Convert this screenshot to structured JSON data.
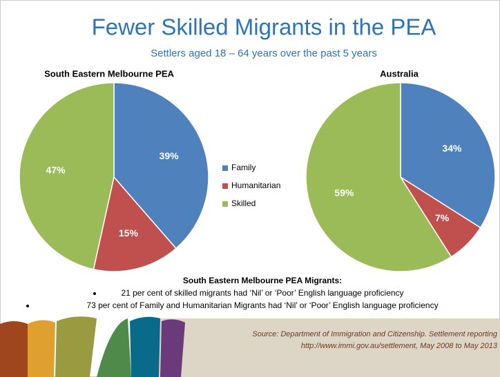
{
  "chart_data": {
    "type": "pie",
    "title": "Fewer Skilled Migrants in the PEA",
    "subtitle": "Settlers aged 18 – 64 years over the past 5 years",
    "categories": [
      "Family",
      "Humanitarian",
      "Skilled"
    ],
    "colors": [
      "#4f81bd",
      "#c0504d",
      "#9bbb59"
    ],
    "series": [
      {
        "name": "South Eastern Melbourne PEA",
        "values": [
          39,
          15,
          47
        ],
        "value_labels": [
          "39%",
          "15%",
          "47%"
        ]
      },
      {
        "name": "Australia",
        "values": [
          34,
          7,
          59
        ],
        "value_labels": [
          "34%",
          "7%",
          "59%"
        ]
      }
    ]
  },
  "notes": {
    "heading": "South Eastern Melbourne PEA Migrants:",
    "bullets": [
      "21 per cent of skilled migrants  had ‘Nil’ or ‘Poor’ English language proficiency",
      "73 per cent of Family and Humanitarian Migrants had ‘Nil’ or ‘Poor’ English language proficiency"
    ]
  },
  "source": {
    "line1": "Source:  Department of Immigration and Citizenship. Settlement reporting",
    "line2": "http://www.immi.gov.au/settlement, May 2008 to May 2013"
  }
}
